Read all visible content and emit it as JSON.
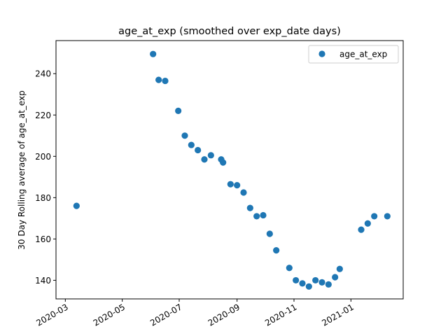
{
  "chart_data": {
    "type": "scatter",
    "title": "age_at_exp (smoothed over exp_date days)",
    "xlabel": "",
    "ylabel": "30 Day Rolling average of age_at_exp",
    "x_is_date": true,
    "xlim": [
      "2020-02-20",
      "2021-02-26"
    ],
    "ylim": [
      131,
      256
    ],
    "xticks": [
      "2020-03",
      "2020-05",
      "2020-07",
      "2020-09",
      "2020-11",
      "2021-01"
    ],
    "yticks": [
      140,
      160,
      180,
      200,
      220,
      240
    ],
    "grid": false,
    "legend_position": "upper right",
    "series": [
      {
        "name": "age_at_exp",
        "color": "#1f77b4",
        "marker": "circle",
        "points": [
          {
            "x": "2020-03-13",
            "y": 176
          },
          {
            "x": "2020-06-03",
            "y": 249.5
          },
          {
            "x": "2020-06-09",
            "y": 237
          },
          {
            "x": "2020-06-16",
            "y": 236.5
          },
          {
            "x": "2020-06-30",
            "y": 222
          },
          {
            "x": "2020-07-07",
            "y": 210
          },
          {
            "x": "2020-07-14",
            "y": 205.5
          },
          {
            "x": "2020-07-21",
            "y": 203
          },
          {
            "x": "2020-07-28",
            "y": 198.5
          },
          {
            "x": "2020-08-04",
            "y": 200.5
          },
          {
            "x": "2020-08-15",
            "y": 198.5
          },
          {
            "x": "2020-08-17",
            "y": 197
          },
          {
            "x": "2020-08-25",
            "y": 186.5
          },
          {
            "x": "2020-09-01",
            "y": 186
          },
          {
            "x": "2020-09-08",
            "y": 182.5
          },
          {
            "x": "2020-09-15",
            "y": 175
          },
          {
            "x": "2020-09-22",
            "y": 171
          },
          {
            "x": "2020-09-29",
            "y": 171.5
          },
          {
            "x": "2020-10-06",
            "y": 162.5
          },
          {
            "x": "2020-10-13",
            "y": 154.5
          },
          {
            "x": "2020-10-27",
            "y": 146
          },
          {
            "x": "2020-11-03",
            "y": 140
          },
          {
            "x": "2020-11-10",
            "y": 138.5
          },
          {
            "x": "2020-11-17",
            "y": 137
          },
          {
            "x": "2020-11-24",
            "y": 140
          },
          {
            "x": "2020-12-01",
            "y": 139
          },
          {
            "x": "2020-12-08",
            "y": 138
          },
          {
            "x": "2020-12-15",
            "y": 141.5
          },
          {
            "x": "2020-12-20",
            "y": 145.5
          },
          {
            "x": "2021-01-12",
            "y": 164.5
          },
          {
            "x": "2021-01-19",
            "y": 167.5
          },
          {
            "x": "2021-01-26",
            "y": 171
          },
          {
            "x": "2021-02-09",
            "y": 171
          }
        ]
      }
    ]
  }
}
